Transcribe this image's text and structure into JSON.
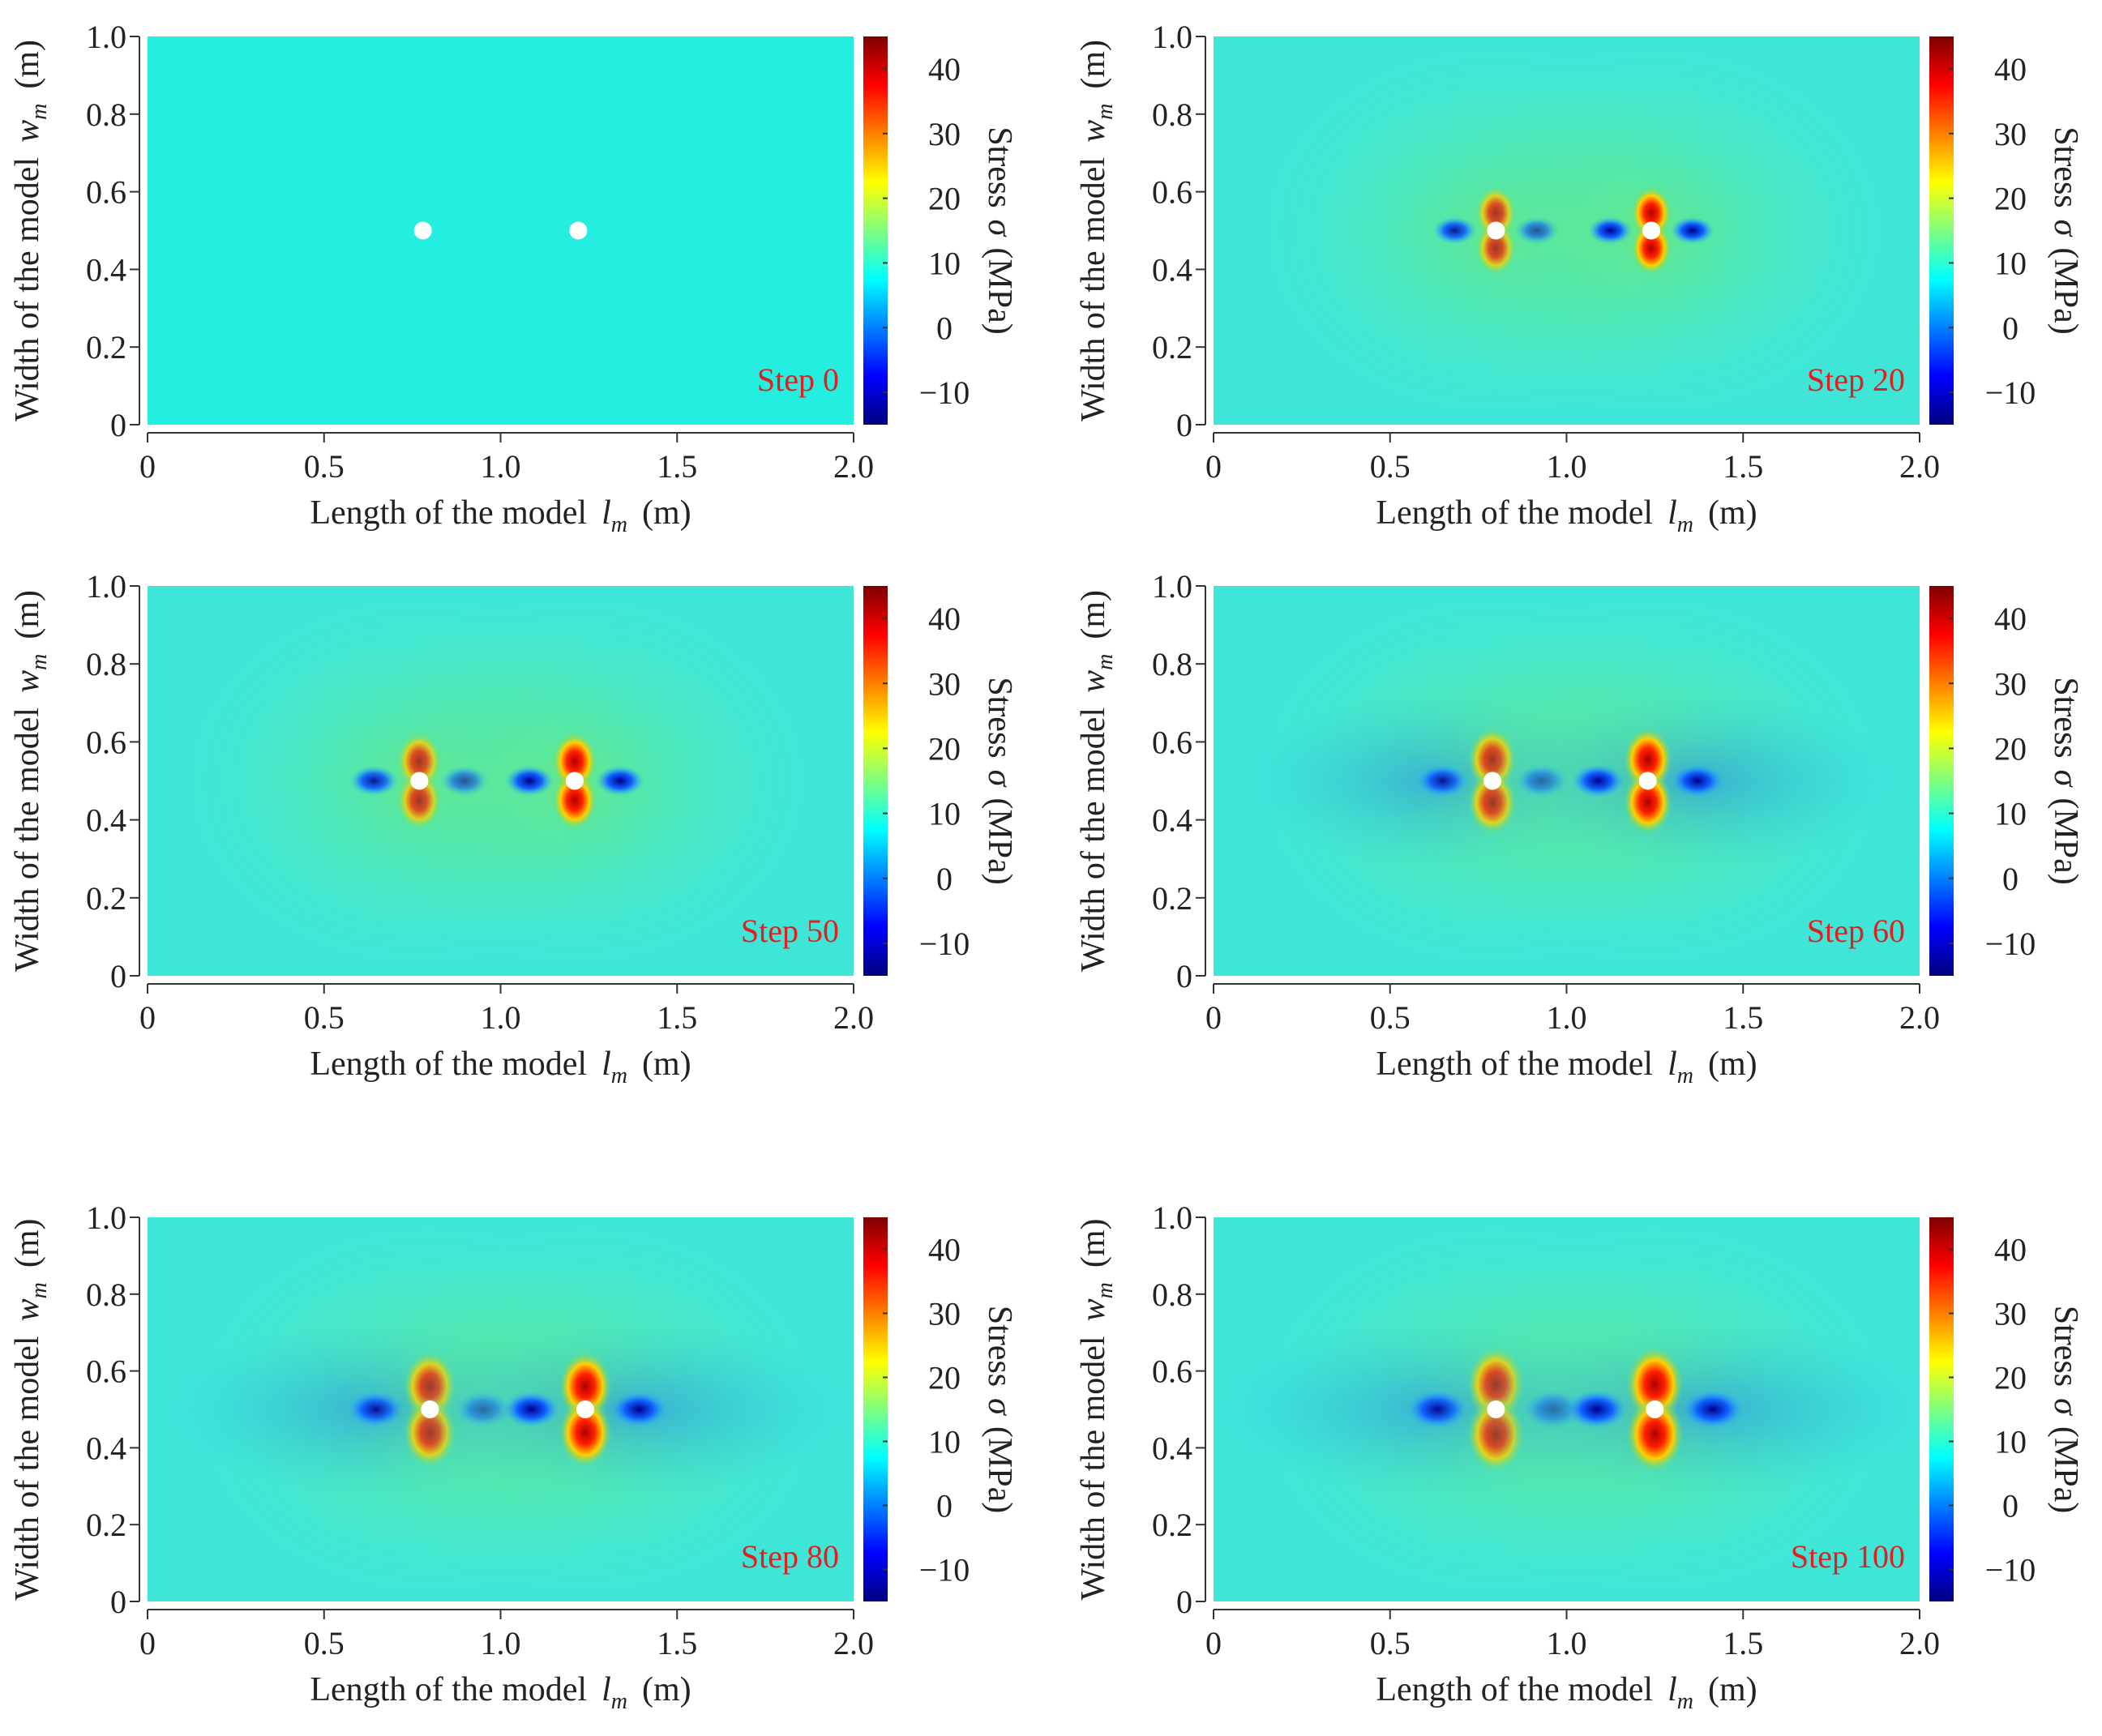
{
  "chart_data": [
    {
      "type": "heatmap",
      "annotation": "Step 0",
      "colormap": "jet",
      "xlabel": {
        "text": "Length of the model",
        "symbol": "l",
        "subscript": "m",
        "unit": "(m)"
      },
      "ylabel": {
        "text": "Width of the model",
        "symbol": "w",
        "subscript": "m",
        "unit": "(m)"
      },
      "colorbar_label": {
        "text": "Stress",
        "symbol": "σ",
        "unit": "(MPa)"
      },
      "xlim": [
        0,
        2
      ],
      "xticks": [
        0,
        0.5,
        {
          "value": 1,
          "label": "1.0"
        },
        1.5,
        {
          "value": 2,
          "label": "2.0"
        }
      ],
      "ylim": [
        0,
        1
      ],
      "yticks": [
        0,
        0.2,
        0.4,
        0.6,
        0.8,
        {
          "value": 1,
          "label": "1.0"
        }
      ],
      "clim": [
        -15,
        45
      ],
      "cticks": [
        {
          "value": -10,
          "label": "−10"
        },
        0,
        10,
        20,
        30,
        40
      ],
      "holes": {
        "x": [
          0.78,
          1.22
        ],
        "y": [
          0.5,
          0.5
        ]
      }
    },
    {
      "type": "heatmap",
      "annotation": "Step 20",
      "colormap": "jet",
      "xlabel": {
        "text": "Length of the model",
        "symbol": "l",
        "subscript": "m",
        "unit": "(m)"
      },
      "ylabel": {
        "text": "Width of the model",
        "symbol": "w",
        "subscript": "m",
        "unit": "(m)"
      },
      "colorbar_label": {
        "text": "Stress",
        "symbol": "σ",
        "unit": "(MPa)"
      },
      "xlim": [
        0,
        2
      ],
      "xticks": [
        0,
        0.5,
        {
          "value": 1,
          "label": "1.0"
        },
        1.5,
        {
          "value": 2,
          "label": "2.0"
        }
      ],
      "ylim": [
        0,
        1
      ],
      "yticks": [
        0,
        0.2,
        0.4,
        0.6,
        0.8,
        {
          "value": 1,
          "label": "1.0"
        }
      ],
      "clim": [
        -15,
        45
      ],
      "cticks": [
        {
          "value": -10,
          "label": "−10"
        },
        0,
        10,
        20,
        30,
        40
      ],
      "holes": {
        "x": [
          0.8,
          1.24
        ],
        "y": [
          0.5,
          0.5
        ]
      }
    },
    {
      "type": "heatmap",
      "annotation": "Step 50",
      "colormap": "jet",
      "xlabel": {
        "text": "Length of the model",
        "symbol": "l",
        "subscript": "m",
        "unit": "(m)"
      },
      "ylabel": {
        "text": "Width of the model",
        "symbol": "w",
        "subscript": "m",
        "unit": "(m)"
      },
      "colorbar_label": {
        "text": "Stress",
        "symbol": "σ",
        "unit": "(MPa)"
      },
      "xlim": [
        0,
        2
      ],
      "xticks": [
        0,
        0.5,
        {
          "value": 1,
          "label": "1.0"
        },
        1.5,
        {
          "value": 2,
          "label": "2.0"
        }
      ],
      "ylim": [
        0,
        1
      ],
      "yticks": [
        0,
        0.2,
        0.4,
        0.6,
        0.8,
        {
          "value": 1,
          "label": "1.0"
        }
      ],
      "clim": [
        -15,
        45
      ],
      "cticks": [
        {
          "value": -10,
          "label": "−10"
        },
        0,
        10,
        20,
        30,
        40
      ],
      "holes": {
        "x": [
          0.77,
          1.21
        ],
        "y": [
          0.5,
          0.5
        ]
      }
    },
    {
      "type": "heatmap",
      "annotation": "Step 60",
      "colormap": "jet",
      "xlabel": {
        "text": "Length of the model",
        "symbol": "l",
        "subscript": "m",
        "unit": "(m)"
      },
      "ylabel": {
        "text": "Width of the model",
        "symbol": "w",
        "subscript": "m",
        "unit": "(m)"
      },
      "colorbar_label": {
        "text": "Stress",
        "symbol": "σ",
        "unit": "(MPa)"
      },
      "xlim": [
        0,
        2
      ],
      "xticks": [
        0,
        0.5,
        {
          "value": 1,
          "label": "1.0"
        },
        1.5,
        {
          "value": 2,
          "label": "2.0"
        }
      ],
      "ylim": [
        0,
        1
      ],
      "yticks": [
        0,
        0.2,
        0.4,
        0.6,
        0.8,
        {
          "value": 1,
          "label": "1.0"
        }
      ],
      "clim": [
        -15,
        45
      ],
      "cticks": [
        {
          "value": -10,
          "label": "−10"
        },
        0,
        10,
        20,
        30,
        40
      ],
      "holes": {
        "x": [
          0.79,
          1.23
        ],
        "y": [
          0.5,
          0.5
        ]
      }
    },
    {
      "type": "heatmap",
      "annotation": "Step 80",
      "colormap": "jet",
      "xlabel": {
        "text": "Length of the model",
        "symbol": "l",
        "subscript": "m",
        "unit": "(m)"
      },
      "ylabel": {
        "text": "Width of the model",
        "symbol": "w",
        "subscript": "m",
        "unit": "(m)"
      },
      "colorbar_label": {
        "text": "Stress",
        "symbol": "σ",
        "unit": "(MPa)"
      },
      "xlim": [
        0,
        2
      ],
      "xticks": [
        0,
        0.5,
        {
          "value": 1,
          "label": "1.0"
        },
        1.5,
        {
          "value": 2,
          "label": "2.0"
        }
      ],
      "ylim": [
        0,
        1
      ],
      "yticks": [
        0,
        0.2,
        0.4,
        0.6,
        0.8,
        {
          "value": 1,
          "label": "1.0"
        }
      ],
      "clim": [
        -15,
        45
      ],
      "cticks": [
        {
          "value": -10,
          "label": "−10"
        },
        0,
        10,
        20,
        30,
        40
      ],
      "holes": {
        "x": [
          0.8,
          1.24
        ],
        "y": [
          0.5,
          0.5
        ]
      }
    },
    {
      "type": "heatmap",
      "annotation": "Step 100",
      "colormap": "jet",
      "xlabel": {
        "text": "Length of the model",
        "symbol": "l",
        "subscript": "m",
        "unit": "(m)"
      },
      "ylabel": {
        "text": "Width of the model",
        "symbol": "w",
        "subscript": "m",
        "unit": "(m)"
      },
      "colorbar_label": {
        "text": "Stress",
        "symbol": "σ",
        "unit": "(MPa)"
      },
      "xlim": [
        0,
        2
      ],
      "xticks": [
        0,
        0.5,
        {
          "value": 1,
          "label": "1.0"
        },
        1.5,
        {
          "value": 2,
          "label": "2.0"
        }
      ],
      "ylim": [
        0,
        1
      ],
      "yticks": [
        0,
        0.2,
        0.4,
        0.6,
        0.8,
        {
          "value": 1,
          "label": "1.0"
        }
      ],
      "clim": [
        -15,
        45
      ],
      "cticks": [
        {
          "value": -10,
          "label": "−10"
        },
        0,
        10,
        20,
        30,
        40
      ],
      "holes": {
        "x": [
          0.8,
          1.25
        ],
        "y": [
          0.5,
          0.5
        ]
      }
    }
  ]
}
